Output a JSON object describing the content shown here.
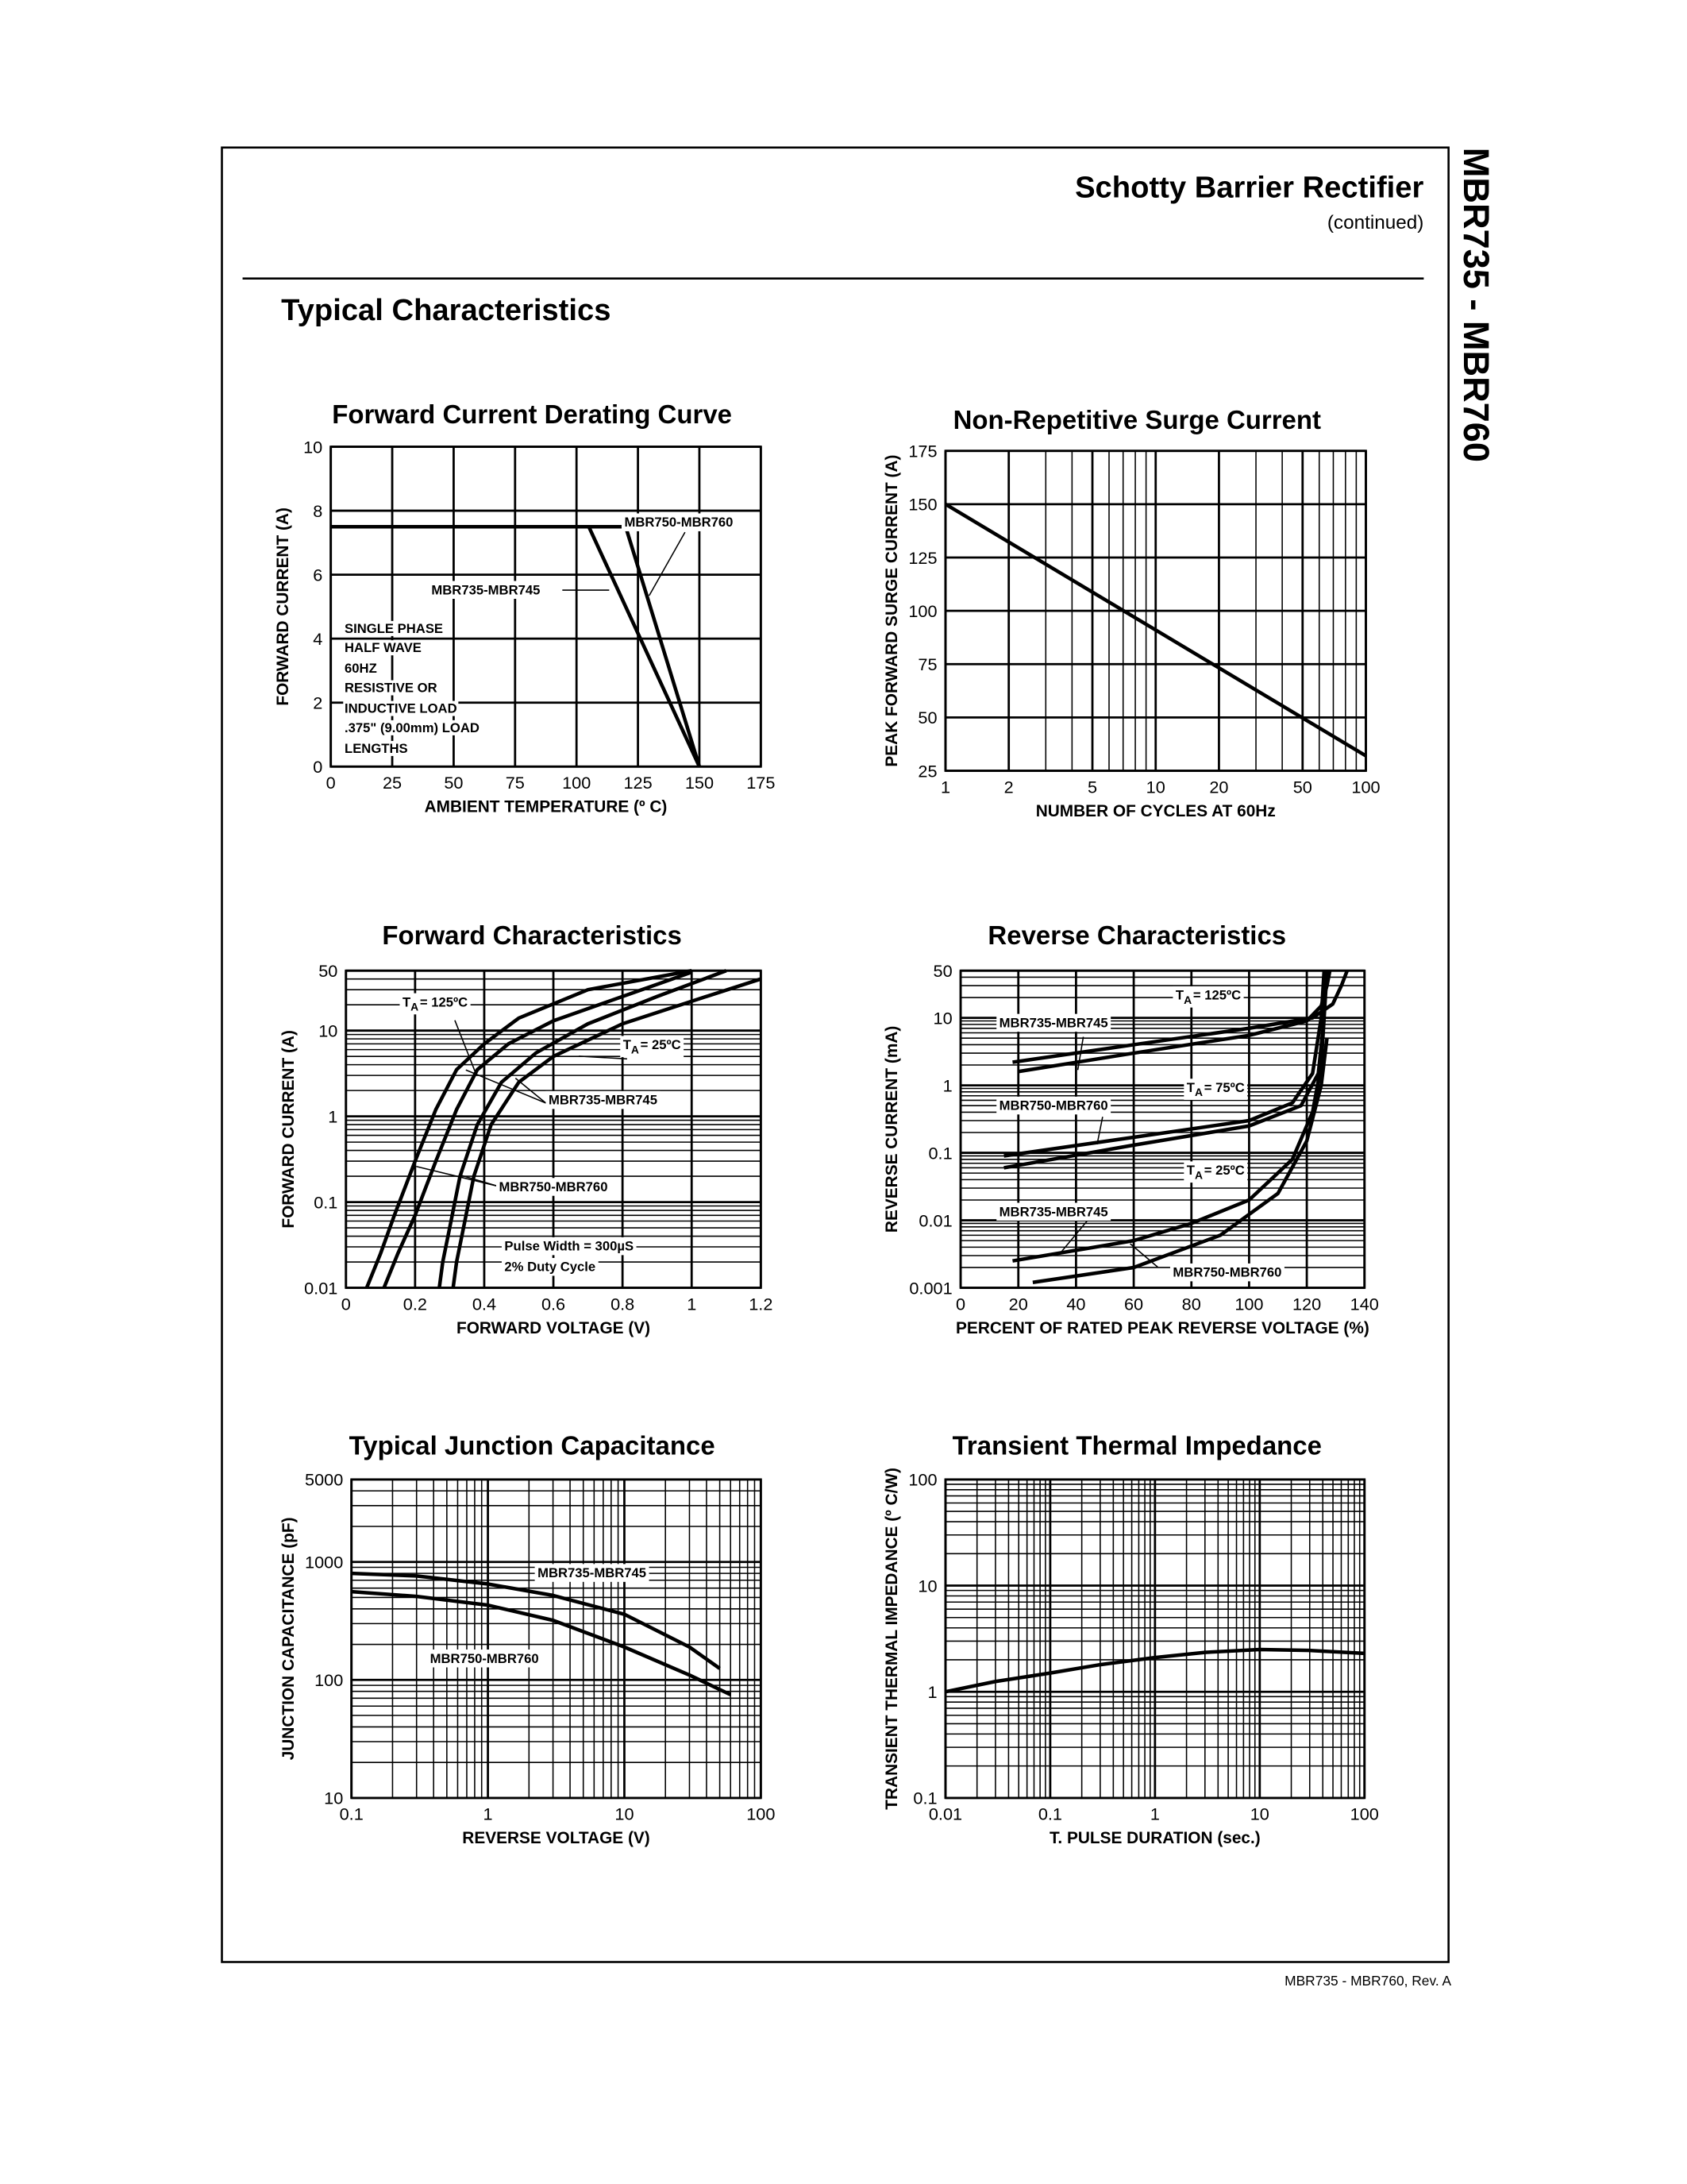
{
  "header": {
    "title": "Schotty Barrier Rectifier",
    "subtitle": "(continued)",
    "section": "Typical Characteristics",
    "side_title": "MBR735 - MBR760"
  },
  "footer": "MBR735 - MBR760, Rev. A",
  "chart_data": [
    {
      "type": "line",
      "title": "Forward Current Derating Curve",
      "x_label": "AMBIENT TEMPERATURE (º C)",
      "y_label": "FORWARD CURRENT (A)",
      "xscale": "linear",
      "yscale": "linear",
      "xlim": [
        0,
        175
      ],
      "ylim": [
        0,
        10
      ],
      "xticks": [
        0,
        25,
        50,
        75,
        100,
        125,
        150,
        175
      ],
      "yticks": [
        0,
        2,
        4,
        6,
        8,
        10
      ],
      "grid": true,
      "series": [
        {
          "color": "#000000",
          "x": [
            0,
            105,
            150
          ],
          "values": [
            7.5,
            7.5,
            0
          ]
        },
        {
          "color": "#000000",
          "x": [
            0,
            120,
            150
          ],
          "values": [
            7.5,
            7.5,
            0
          ]
        }
      ],
      "annotations": [
        "MBR750-MBR760",
        "MBR735-MBR745",
        "SINGLE PHASE",
        "HALF WAVE",
        "60HZ",
        "RESISTIVE OR",
        "INDUCTIVE LOAD",
        ".375\" (9.00mm) LOAD",
        "LENGTHS"
      ]
    },
    {
      "type": "line",
      "title": "Non-Repetitive Surge Current",
      "x_label": "NUMBER OF CYCLES AT 60Hz",
      "y_label": "PEAK FORWARD SURGE CURRENT (A)",
      "xscale": "log",
      "yscale": "linear",
      "xlim": [
        1,
        100
      ],
      "ylim": [
        25,
        175
      ],
      "xticks": [
        1,
        2,
        5,
        10,
        20,
        50,
        100
      ],
      "yticks": [
        25,
        50,
        75,
        100,
        125,
        150,
        175
      ],
      "grid": true,
      "series": [
        {
          "color": "#000000",
          "x": [
            1,
            100
          ],
          "values": [
            150,
            32
          ]
        }
      ],
      "annotations": []
    },
    {
      "type": "line",
      "title": "Forward Characteristics",
      "x_label": "FORWARD VOLTAGE (V)",
      "y_label": "FORWARD CURRENT (A)",
      "xscale": "linear",
      "yscale": "log",
      "xlim": [
        0,
        1.2
      ],
      "ylim": [
        0.01,
        50
      ],
      "xticks": [
        0,
        0.2,
        0.4,
        0.6,
        0.8,
        1,
        1.2
      ],
      "yticks": [
        0.01,
        0.1,
        1,
        10,
        50
      ],
      "grid": true,
      "series": [
        {
          "color": "#000000",
          "x": [
            0.06,
            0.1,
            0.14,
            0.2,
            0.26,
            0.32,
            0.4,
            0.5,
            0.7,
            1.0
          ],
          "values": [
            0.01,
            0.025,
            0.07,
            0.3,
            1.2,
            3.5,
            7,
            14,
            30,
            50
          ]
        },
        {
          "color": "#000000",
          "x": [
            0.11,
            0.15,
            0.2,
            0.26,
            0.32,
            0.38,
            0.47,
            0.6,
            0.8,
            1.0
          ],
          "values": [
            0.01,
            0.025,
            0.07,
            0.3,
            1.2,
            3.5,
            7,
            13,
            25,
            48
          ]
        },
        {
          "color": "#000000",
          "x": [
            0.27,
            0.28,
            0.3,
            0.33,
            0.38,
            0.45,
            0.55,
            0.7,
            0.9,
            1.1
          ],
          "values": [
            0.01,
            0.02,
            0.05,
            0.2,
            0.8,
            2.5,
            5.5,
            12,
            25,
            50
          ]
        },
        {
          "color": "#000000",
          "x": [
            0.31,
            0.32,
            0.34,
            0.37,
            0.42,
            0.5,
            0.6,
            0.8,
            1.0,
            1.2
          ],
          "values": [
            0.01,
            0.02,
            0.05,
            0.2,
            0.8,
            2.5,
            5,
            12,
            22,
            40
          ]
        }
      ],
      "annotations": [
        {
          "text": "T",
          "sub": "A",
          "rest": "= 125ºC"
        },
        {
          "text": "T",
          "sub": "A",
          "rest": "= 25ºC"
        },
        "MBR735-MBR745",
        "MBR750-MBR760",
        "Pulse Width = 300µS",
        "2% Duty Cycle"
      ]
    },
    {
      "type": "line",
      "title": "Reverse Characteristics",
      "x_label": "PERCENT OF RATED PEAK REVERSE VOLTAGE (%)",
      "y_label": "REVERSE CURRENT (mA)",
      "xscale": "linear",
      "yscale": "log",
      "xlim": [
        0,
        140
      ],
      "ylim": [
        0.001,
        50
      ],
      "xticks": [
        0,
        20,
        40,
        60,
        80,
        100,
        120,
        140
      ],
      "yticks": [
        0.001,
        0.01,
        0.1,
        1,
        10,
        50
      ],
      "grid": true,
      "series": [
        {
          "color": "#000000",
          "x": [
            20,
            60,
            100,
            120,
            125,
            127,
            128
          ],
          "values": [
            1.6,
            3,
            5.5,
            9,
            15,
            30,
            50
          ]
        },
        {
          "color": "#000000",
          "x": [
            18,
            60,
            100,
            122,
            129,
            132,
            134
          ],
          "values": [
            2.2,
            4,
            7,
            10,
            16,
            30,
            50
          ]
        },
        {
          "color": "#000000",
          "x": [
            15,
            60,
            100,
            115,
            122,
            125,
            126
          ],
          "values": [
            0.09,
            0.17,
            0.3,
            0.55,
            1.5,
            10,
            50
          ]
        },
        {
          "color": "#000000",
          "x": [
            15,
            60,
            100,
            118,
            124,
            126,
            127
          ],
          "values": [
            0.06,
            0.13,
            0.25,
            0.5,
            1.5,
            10,
            50
          ]
        },
        {
          "color": "#000000",
          "x": [
            18,
            60,
            80,
            100,
            115,
            122,
            125,
            126
          ],
          "values": [
            0.0025,
            0.005,
            0.009,
            0.02,
            0.08,
            0.4,
            2,
            10
          ]
        },
        {
          "color": "#000000",
          "x": [
            25,
            60,
            90,
            110,
            120,
            125,
            127
          ],
          "values": [
            0.0012,
            0.002,
            0.006,
            0.025,
            0.15,
            1,
            5
          ]
        }
      ],
      "annotations": [
        {
          "text": "T",
          "sub": "A",
          "rest": "= 125ºC"
        },
        "MBR735-MBR745",
        "MBR750-MBR760",
        {
          "text": "T",
          "sub": "A",
          "rest": "= 75ºC"
        },
        {
          "text": "T",
          "sub": "A",
          "rest": "= 25ºC"
        },
        "MBR735-MBR745",
        "MBR750-MBR760"
      ]
    },
    {
      "type": "line",
      "title": "Typical Junction Capacitance",
      "x_label": "REVERSE VOLTAGE (V)",
      "y_label": "JUNCTION CAPACITANCE (pF)",
      "xscale": "log",
      "yscale": "log",
      "xlim": [
        0.1,
        100
      ],
      "ylim": [
        10,
        5000
      ],
      "xticks": [
        0.1,
        1,
        10,
        100
      ],
      "yticks": [
        10,
        100,
        1000,
        5000
      ],
      "grid": true,
      "series": [
        {
          "color": "#000000",
          "x": [
            0.1,
            0.3,
            1,
            3,
            10,
            30,
            50
          ],
          "values": [
            800,
            760,
            650,
            520,
            360,
            190,
            125
          ]
        },
        {
          "color": "#000000",
          "x": [
            0.1,
            0.3,
            1,
            3,
            10,
            30,
            60
          ],
          "values": [
            560,
            510,
            430,
            320,
            190,
            110,
            75
          ]
        }
      ],
      "annotations": [
        "MBR735-MBR745",
        "MBR750-MBR760"
      ]
    },
    {
      "type": "line",
      "title": "Transient Thermal Impedance",
      "x_label": "T. PULSE DURATION (sec.)",
      "y_label": "TRANSIENT THERMAL IMPEDANCE (º C/W)",
      "xscale": "log",
      "yscale": "log",
      "xlim": [
        0.01,
        100
      ],
      "ylim": [
        0.1,
        100
      ],
      "xticks": [
        0.01,
        0.1,
        1,
        10,
        100
      ],
      "yticks": [
        0.1,
        1,
        10,
        100
      ],
      "grid": true,
      "series": [
        {
          "color": "#000000",
          "x": [
            0.01,
            0.03,
            0.1,
            0.3,
            1,
            3,
            10,
            30,
            100
          ],
          "values": [
            1.0,
            1.25,
            1.5,
            1.8,
            2.1,
            2.35,
            2.5,
            2.45,
            2.3
          ]
        }
      ],
      "annotations": []
    }
  ]
}
